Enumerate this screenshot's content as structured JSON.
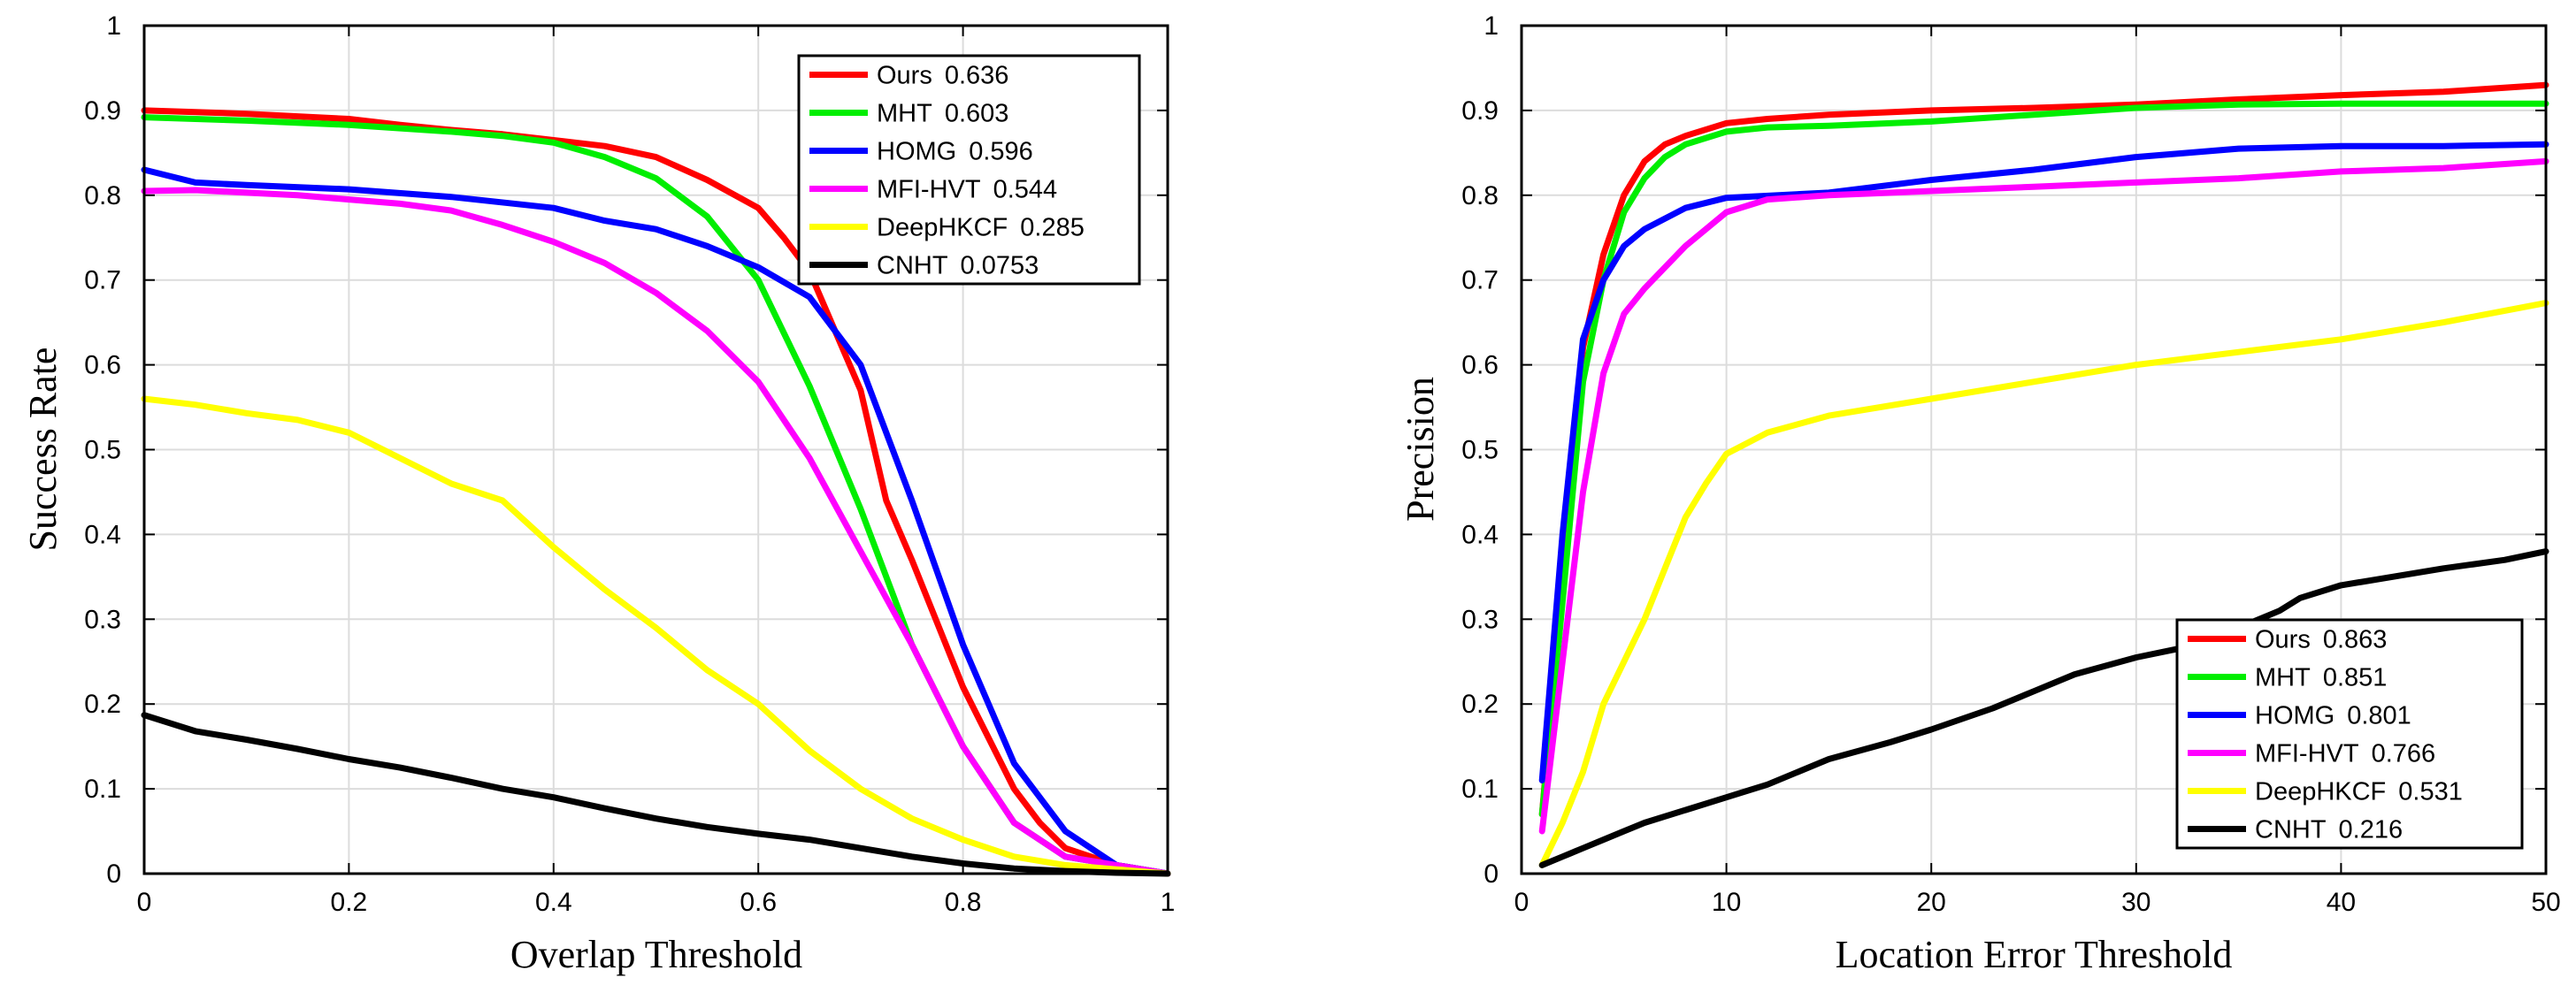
{
  "chart_data": [
    {
      "type": "line",
      "xlabel": "Overlap Threshold",
      "ylabel": "Success Rate",
      "xlim": [
        0,
        1
      ],
      "ylim": [
        0,
        1
      ],
      "grid": true,
      "legend_position": "top-right",
      "x_ticks": [
        "0",
        "0.2",
        "0.4",
        "0.6",
        "0.8",
        "1"
      ],
      "y_ticks": [
        "0",
        "0.1",
        "0.2",
        "0.3",
        "0.4",
        "0.5",
        "0.6",
        "0.7",
        "0.8",
        "0.9",
        "1"
      ],
      "series": [
        {
          "name": "Ours",
          "score": "0.636",
          "color": "#ff0000",
          "x": [
            0,
            0.05,
            0.1,
            0.15,
            0.2,
            0.25,
            0.3,
            0.35,
            0.4,
            0.45,
            0.5,
            0.55,
            0.6,
            0.625,
            0.65,
            0.7,
            0.725,
            0.75,
            0.8,
            0.85,
            0.875,
            0.9,
            0.95,
            1.0
          ],
          "y": [
            0.9,
            0.898,
            0.896,
            0.893,
            0.89,
            0.883,
            0.877,
            0.872,
            0.865,
            0.858,
            0.845,
            0.818,
            0.785,
            0.75,
            0.71,
            0.57,
            0.44,
            0.37,
            0.22,
            0.1,
            0.06,
            0.03,
            0.01,
            0
          ]
        },
        {
          "name": "MHT",
          "score": "0.603",
          "color": "#00ee00",
          "x": [
            0,
            0.1,
            0.2,
            0.3,
            0.35,
            0.4,
            0.45,
            0.5,
            0.55,
            0.6,
            0.65,
            0.7,
            0.75,
            0.8,
            0.85,
            0.9,
            0.95,
            1.0
          ],
          "y": [
            0.892,
            0.888,
            0.883,
            0.875,
            0.87,
            0.862,
            0.845,
            0.82,
            0.775,
            0.7,
            0.575,
            0.43,
            0.27,
            0.15,
            0.06,
            0.02,
            0.01,
            0
          ]
        },
        {
          "name": "HOMG",
          "score": "0.596",
          "color": "#0000ff",
          "x": [
            0,
            0.05,
            0.1,
            0.2,
            0.3,
            0.4,
            0.45,
            0.5,
            0.55,
            0.6,
            0.65,
            0.7,
            0.75,
            0.8,
            0.85,
            0.9,
            0.95,
            1.0
          ],
          "y": [
            0.83,
            0.815,
            0.812,
            0.807,
            0.798,
            0.785,
            0.77,
            0.76,
            0.74,
            0.715,
            0.68,
            0.6,
            0.44,
            0.27,
            0.13,
            0.05,
            0.01,
            0
          ]
        },
        {
          "name": "MFI-HVT",
          "score": "0.544",
          "color": "#ff00ff",
          "x": [
            0,
            0.05,
            0.1,
            0.15,
            0.2,
            0.25,
            0.3,
            0.35,
            0.4,
            0.45,
            0.5,
            0.55,
            0.6,
            0.65,
            0.7,
            0.75,
            0.8,
            0.85,
            0.9,
            0.95,
            1.0
          ],
          "y": [
            0.805,
            0.806,
            0.803,
            0.8,
            0.795,
            0.79,
            0.782,
            0.765,
            0.745,
            0.72,
            0.685,
            0.64,
            0.58,
            0.49,
            0.38,
            0.27,
            0.15,
            0.06,
            0.02,
            0.01,
            0
          ]
        },
        {
          "name": "DeepHKCF",
          "score": "0.285",
          "color": "#ffff00",
          "x": [
            0,
            0.05,
            0.1,
            0.15,
            0.2,
            0.25,
            0.3,
            0.35,
            0.4,
            0.45,
            0.5,
            0.55,
            0.6,
            0.65,
            0.7,
            0.75,
            0.8,
            0.85,
            0.9,
            0.95,
            1.0
          ],
          "y": [
            0.56,
            0.553,
            0.543,
            0.535,
            0.52,
            0.49,
            0.46,
            0.44,
            0.385,
            0.335,
            0.29,
            0.24,
            0.2,
            0.145,
            0.1,
            0.065,
            0.04,
            0.02,
            0.01,
            0.005,
            0
          ]
        },
        {
          "name": "CNHT",
          "score": "0.0753",
          "color": "#000000",
          "x": [
            0,
            0.05,
            0.1,
            0.15,
            0.2,
            0.25,
            0.3,
            0.35,
            0.4,
            0.45,
            0.5,
            0.55,
            0.6,
            0.65,
            0.7,
            0.75,
            0.8,
            0.85,
            0.9,
            0.95,
            1.0
          ],
          "y": [
            0.187,
            0.168,
            0.158,
            0.147,
            0.135,
            0.125,
            0.113,
            0.1,
            0.09,
            0.077,
            0.065,
            0.055,
            0.047,
            0.04,
            0.03,
            0.02,
            0.012,
            0.006,
            0.003,
            0.001,
            0
          ]
        }
      ]
    },
    {
      "type": "line",
      "xlabel": "Location Error Threshold",
      "ylabel": "Precision",
      "xlim": [
        0,
        50
      ],
      "ylim": [
        0,
        1
      ],
      "grid": true,
      "legend_position": "bottom-right",
      "x_ticks": [
        "0",
        "10",
        "20",
        "30",
        "40",
        "50"
      ],
      "y_ticks": [
        "0",
        "0.1",
        "0.2",
        "0.3",
        "0.4",
        "0.5",
        "0.6",
        "0.7",
        "0.8",
        "0.9",
        "1"
      ],
      "series": [
        {
          "name": "Ours",
          "score": "0.863",
          "color": "#ff0000",
          "x": [
            1,
            2,
            3,
            4,
            5,
            6,
            7,
            8,
            10,
            12,
            15,
            20,
            25,
            30,
            35,
            40,
            45,
            50
          ],
          "y": [
            0.07,
            0.35,
            0.62,
            0.73,
            0.8,
            0.84,
            0.86,
            0.87,
            0.885,
            0.89,
            0.895,
            0.9,
            0.903,
            0.907,
            0.913,
            0.918,
            0.922,
            0.93
          ]
        },
        {
          "name": "MHT",
          "score": "0.851",
          "color": "#00ee00",
          "x": [
            1,
            2,
            3,
            4,
            5,
            6,
            7,
            8,
            10,
            12,
            15,
            20,
            25,
            30,
            35,
            40,
            45,
            50
          ],
          "y": [
            0.07,
            0.32,
            0.58,
            0.7,
            0.78,
            0.82,
            0.845,
            0.86,
            0.875,
            0.88,
            0.882,
            0.887,
            0.895,
            0.903,
            0.907,
            0.908,
            0.908,
            0.908
          ]
        },
        {
          "name": "HOMG",
          "score": "0.801",
          "color": "#0000ff",
          "x": [
            1,
            2,
            3,
            4,
            5,
            6,
            8,
            10,
            15,
            20,
            25,
            30,
            35,
            40,
            45,
            50
          ],
          "y": [
            0.11,
            0.4,
            0.63,
            0.7,
            0.74,
            0.76,
            0.785,
            0.797,
            0.803,
            0.818,
            0.83,
            0.845,
            0.855,
            0.858,
            0.858,
            0.86
          ]
        },
        {
          "name": "MFI-HVT",
          "score": "0.766",
          "color": "#ff00ff",
          "x": [
            1,
            2,
            3,
            4,
            5,
            6,
            8,
            10,
            12,
            15,
            20,
            25,
            30,
            35,
            40,
            45,
            50
          ],
          "y": [
            0.05,
            0.25,
            0.45,
            0.59,
            0.66,
            0.69,
            0.74,
            0.78,
            0.795,
            0.8,
            0.805,
            0.81,
            0.815,
            0.82,
            0.828,
            0.832,
            0.84
          ]
        },
        {
          "name": "DeepHKCF",
          "score": "0.531",
          "color": "#ffff00",
          "x": [
            1,
            2,
            3,
            4,
            5,
            6,
            7,
            8,
            9,
            10,
            12,
            15,
            20,
            25,
            30,
            35,
            40,
            45,
            50
          ],
          "y": [
            0.01,
            0.06,
            0.12,
            0.2,
            0.25,
            0.3,
            0.36,
            0.42,
            0.46,
            0.495,
            0.52,
            0.54,
            0.56,
            0.58,
            0.6,
            0.615,
            0.63,
            0.65,
            0.673
          ]
        },
        {
          "name": "CNHT",
          "score": "0.216",
          "color": "#000000",
          "x": [
            1,
            2,
            3,
            4,
            5,
            6,
            8,
            10,
            12,
            15,
            18,
            20,
            23,
            25,
            27,
            30,
            32,
            35,
            37,
            38,
            40,
            42,
            45,
            48,
            50
          ],
          "y": [
            0.01,
            0.02,
            0.03,
            0.04,
            0.05,
            0.06,
            0.075,
            0.09,
            0.105,
            0.135,
            0.155,
            0.17,
            0.195,
            0.215,
            0.235,
            0.255,
            0.265,
            0.29,
            0.31,
            0.325,
            0.34,
            0.348,
            0.36,
            0.37,
            0.38
          ]
        }
      ]
    }
  ]
}
